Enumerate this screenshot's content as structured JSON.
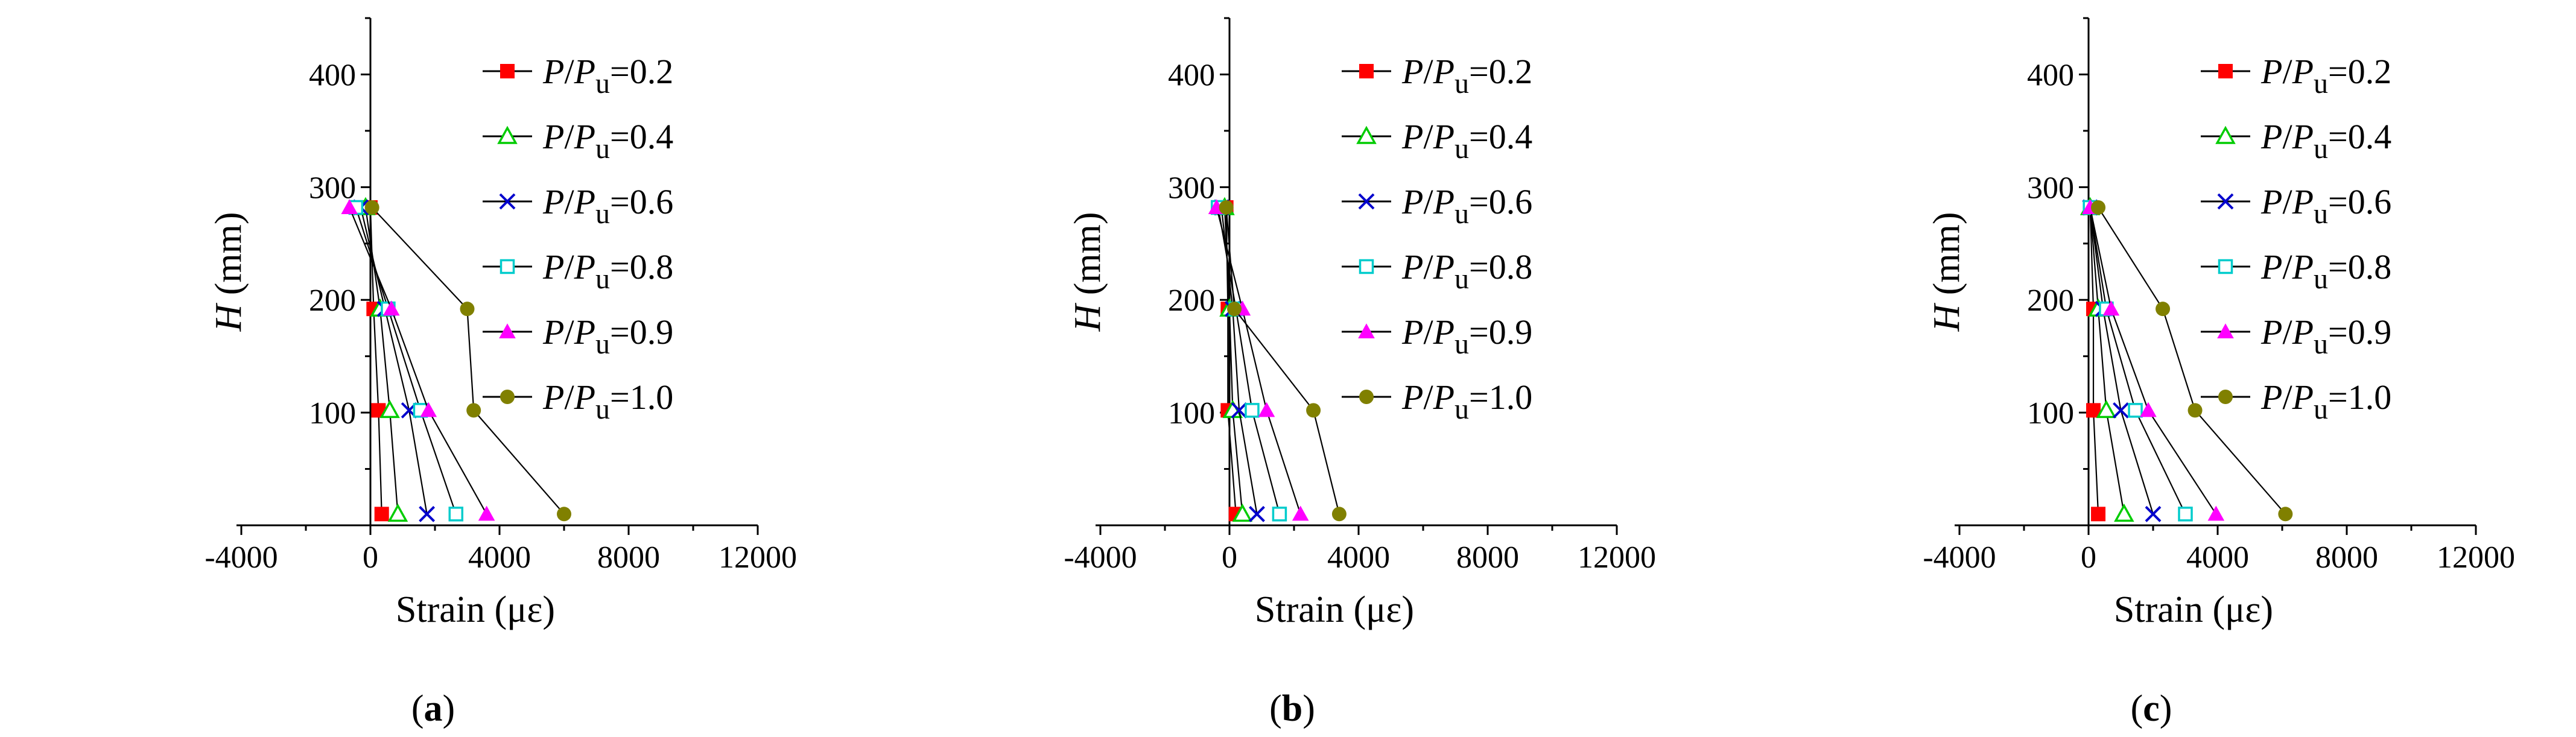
{
  "chart_data": [
    {
      "type": "line",
      "panel_label": "(a)",
      "xlabel": "Strain (με)",
      "ylabel_italic": "H",
      "ylabel_rest": " (mm)",
      "xlim": [
        -4000,
        12000
      ],
      "ylim": [
        0,
        450
      ],
      "xticks": [
        -4000,
        0,
        4000,
        8000,
        12000
      ],
      "xtick_labels": [
        "-4000",
        "0",
        "4000",
        "8000",
        "12000"
      ],
      "yticks": [
        100,
        200,
        300,
        400
      ],
      "ytick_labels": [
        "100",
        "200",
        "300",
        "400"
      ],
      "heights": [
        10,
        102,
        192,
        282
      ],
      "series": [
        {
          "name": "P/Pu=0.2",
          "ratio": "0.2",
          "marker": "square-filled",
          "color": "#ff0000",
          "strains": [
            350,
            250,
            100,
            0
          ]
        },
        {
          "name": "P/Pu=0.4",
          "ratio": "0.4",
          "marker": "triangle-open",
          "color": "#00cc00",
          "strains": [
            850,
            600,
            300,
            -150
          ]
        },
        {
          "name": "P/Pu=0.6",
          "ratio": "0.6",
          "marker": "cross",
          "color": "#0000cc",
          "strains": [
            1750,
            1200,
            450,
            -300
          ]
        },
        {
          "name": "P/Pu=0.8",
          "ratio": "0.8",
          "marker": "square-open",
          "color": "#00cccc",
          "strains": [
            2650,
            1550,
            550,
            -450
          ]
        },
        {
          "name": "P/Pu=0.9",
          "ratio": "0.9",
          "marker": "triangle-filled",
          "color": "#ff00ff",
          "strains": [
            3600,
            1800,
            650,
            -650
          ]
        },
        {
          "name": "P/Pu=1.0",
          "ratio": "1.0",
          "marker": "circle-filled",
          "color": "#808000",
          "strains": [
            6000,
            3200,
            3000,
            50
          ]
        }
      ]
    },
    {
      "type": "line",
      "panel_label": "(b)",
      "xlabel": "Strain (με)",
      "ylabel_italic": "H",
      "ylabel_rest": " (mm)",
      "xlim": [
        -4000,
        12000
      ],
      "ylim": [
        0,
        450
      ],
      "xticks": [
        -4000,
        0,
        4000,
        8000,
        12000
      ],
      "xtick_labels": [
        "-4000",
        "0",
        "4000",
        "8000",
        "12000"
      ],
      "yticks": [
        100,
        200,
        300,
        400
      ],
      "ytick_labels": [
        "100",
        "200",
        "300",
        "400"
      ],
      "heights": [
        10,
        102,
        192,
        282
      ],
      "series": [
        {
          "name": "P/Pu=0.2",
          "ratio": "0.2",
          "marker": "square-filled",
          "color": "#ff0000",
          "strains": [
            200,
            -50,
            -50,
            -100
          ]
        },
        {
          "name": "P/Pu=0.4",
          "ratio": "0.4",
          "marker": "triangle-open",
          "color": "#00cc00",
          "strains": [
            400,
            100,
            0,
            -150
          ]
        },
        {
          "name": "P/Pu=0.6",
          "ratio": "0.6",
          "marker": "cross",
          "color": "#0000cc",
          "strains": [
            850,
            300,
            100,
            -250
          ]
        },
        {
          "name": "P/Pu=0.8",
          "ratio": "0.8",
          "marker": "square-open",
          "color": "#00cccc",
          "strains": [
            1550,
            700,
            200,
            -350
          ]
        },
        {
          "name": "P/Pu=0.9",
          "ratio": "0.9",
          "marker": "triangle-filled",
          "color": "#ff00ff",
          "strains": [
            2200,
            1150,
            400,
            -400
          ]
        },
        {
          "name": "P/Pu=1.0",
          "ratio": "1.0",
          "marker": "circle-filled",
          "color": "#808000",
          "strains": [
            3400,
            2600,
            150,
            -100
          ]
        }
      ]
    },
    {
      "type": "line",
      "panel_label": "(c)",
      "xlabel": "Strain (με)",
      "ylabel_italic": "H",
      "ylabel_rest": " (mm)",
      "xlim": [
        -4000,
        12000
      ],
      "ylim": [
        0,
        450
      ],
      "xticks": [
        -4000,
        0,
        4000,
        8000,
        12000
      ],
      "xtick_labels": [
        "-4000",
        "0",
        "4000",
        "8000",
        "12000"
      ],
      "yticks": [
        100,
        200,
        300,
        400
      ],
      "ytick_labels": [
        "100",
        "200",
        "300",
        "400"
      ],
      "heights": [
        10,
        102,
        192,
        282
      ],
      "series": [
        {
          "name": "P/Pu=0.2",
          "ratio": "0.2",
          "marker": "square-filled",
          "color": "#ff0000",
          "strains": [
            300,
            150,
            150,
            50
          ]
        },
        {
          "name": "P/Pu=0.4",
          "ratio": "0.4",
          "marker": "triangle-open",
          "color": "#00cc00",
          "strains": [
            1100,
            550,
            300,
            50
          ]
        },
        {
          "name": "P/Pu=0.6",
          "ratio": "0.6",
          "marker": "cross",
          "color": "#0000cc",
          "strains": [
            2000,
            1000,
            450,
            50
          ]
        },
        {
          "name": "P/Pu=0.8",
          "ratio": "0.8",
          "marker": "square-open",
          "color": "#00cccc",
          "strains": [
            3000,
            1450,
            550,
            50
          ]
        },
        {
          "name": "P/Pu=0.9",
          "ratio": "0.9",
          "marker": "triangle-filled",
          "color": "#ff00ff",
          "strains": [
            3950,
            1850,
            700,
            50
          ]
        },
        {
          "name": "P/Pu=1.0",
          "ratio": "1.0",
          "marker": "circle-filled",
          "color": "#808000",
          "strains": [
            6100,
            3300,
            2300,
            300
          ]
        }
      ]
    }
  ],
  "legend_prefix_italic": "P",
  "legend_slash": "/",
  "legend_sub": "u",
  "legend_eq": "="
}
